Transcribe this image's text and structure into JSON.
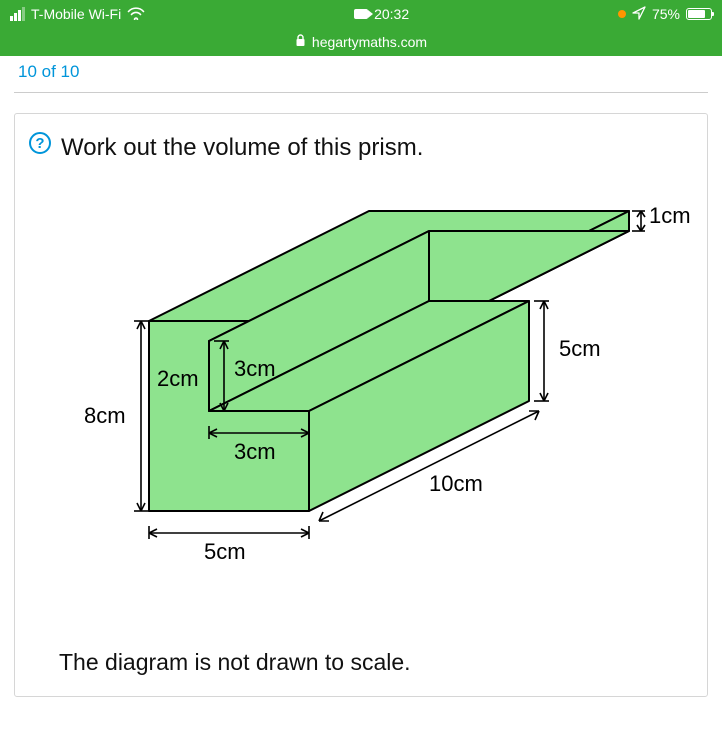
{
  "status": {
    "carrier": "T-Mobile Wi-Fi",
    "time": "20:32",
    "battery_pct": "75%",
    "battery_fill_pct": 75
  },
  "nav": {
    "domain": "hegartymaths.com"
  },
  "page": {
    "progress": "10 of 10",
    "question": "Work out the volume of this prism.",
    "note": "The diagram is not drawn to scale."
  },
  "prism": {
    "fill_color": "#8ee38e",
    "stroke_color": "#000000",
    "labels": {
      "height_total": "8cm",
      "base_width": "5cm",
      "step_width": "3cm",
      "step_height_gap": "3cm",
      "inner_width": "2cm",
      "depth": "10cm",
      "right_height": "5cm",
      "top_thickness": "1cm"
    }
  }
}
